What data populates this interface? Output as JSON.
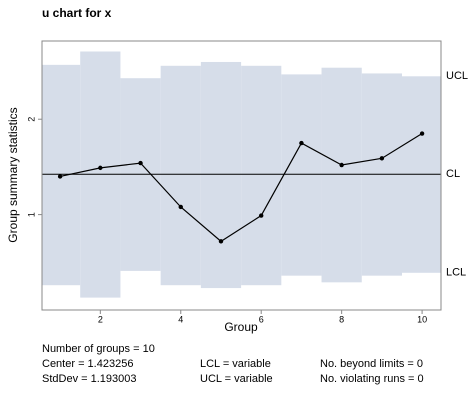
{
  "chart_data": {
    "type": "line",
    "title": "u chart for x",
    "x_label": "Group",
    "y_label": "Group summary statistics",
    "x": [
      1,
      2,
      3,
      4,
      5,
      6,
      7,
      8,
      9,
      10
    ],
    "series": [
      {
        "values": [
          1.4,
          1.49,
          1.54,
          1.08,
          0.72,
          0.99,
          1.75,
          1.52,
          1.59,
          1.85
        ],
        "color": "#000000"
      }
    ],
    "ucl": [
      2.57,
      2.71,
      2.43,
      2.56,
      2.6,
      2.56,
      2.47,
      2.54,
      2.48,
      2.45
    ],
    "lcl": [
      0.26,
      0.13,
      0.41,
      0.26,
      0.23,
      0.26,
      0.36,
      0.29,
      0.36,
      0.39
    ],
    "center": 1.423256,
    "band_color": "#d6dde9",
    "limit_labels": {
      "ucl": "UCL",
      "cl": "CL",
      "lcl": "LCL"
    },
    "xlim": [
      0.55,
      10.47
    ],
    "ylim": [
      0,
      2.82
    ],
    "xticks": [
      2,
      4,
      6,
      8,
      10
    ],
    "yticks": [
      1,
      2
    ],
    "stats": [
      [
        "Number of groups = 10",
        "",
        ""
      ],
      [
        "Center = 1.423256",
        "LCL = variable",
        "No. beyond limits = 0"
      ],
      [
        "StdDev = 1.193003",
        "UCL = variable",
        "No. violating runs = 0"
      ]
    ]
  }
}
